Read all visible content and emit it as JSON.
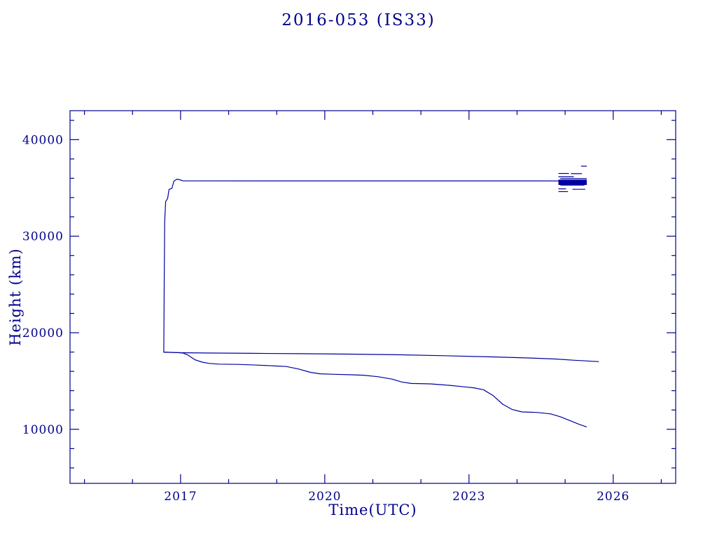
{
  "colors": {
    "ink": "#00008B",
    "line": "#0000A0",
    "background": "#FFFFFF"
  },
  "chart_data": {
    "type": "line",
    "title": "2016-053 (IS33)",
    "xlabel": "Time(UTC)",
    "ylabel": "Height (km)",
    "xlim": [
      2014.7,
      2027.3
    ],
    "ylim": [
      4400,
      43000
    ],
    "xticks": [
      2017,
      2020,
      2023,
      2026
    ],
    "yticks": [
      10000,
      20000,
      30000,
      40000
    ],
    "xtick_minor_step": 1,
    "ytick_minor_step": 2000,
    "grid": false,
    "legend": "none",
    "series": [
      {
        "name": "upper-line-apogee",
        "points": [
          [
            2016.65,
            17950
          ],
          [
            2016.66,
            26000
          ],
          [
            2016.67,
            31500
          ],
          [
            2016.69,
            33600
          ],
          [
            2016.73,
            33900
          ],
          [
            2016.76,
            34850
          ],
          [
            2016.82,
            34950
          ],
          [
            2016.86,
            35700
          ],
          [
            2016.92,
            35900
          ],
          [
            2016.98,
            35850
          ],
          [
            2017.05,
            35730
          ],
          [
            2025.42,
            35720
          ]
        ]
      },
      {
        "name": "middle-line",
        "points": [
          [
            2016.65,
            17980
          ],
          [
            2017.0,
            17930
          ],
          [
            2017.5,
            17900
          ],
          [
            2018.5,
            17870
          ],
          [
            2019.5,
            17830
          ],
          [
            2020.5,
            17790
          ],
          [
            2021.5,
            17720
          ],
          [
            2022.5,
            17620
          ],
          [
            2023.5,
            17500
          ],
          [
            2024.3,
            17380
          ],
          [
            2024.8,
            17280
          ],
          [
            2025.2,
            17150
          ],
          [
            2025.7,
            17010
          ]
        ]
      },
      {
        "name": "lower-line-perigee",
        "points": [
          [
            2016.65,
            18000
          ],
          [
            2016.9,
            17950
          ],
          [
            2017.05,
            17900
          ],
          [
            2017.15,
            17700
          ],
          [
            2017.3,
            17200
          ],
          [
            2017.45,
            16950
          ],
          [
            2017.6,
            16820
          ],
          [
            2017.8,
            16750
          ],
          [
            2018.2,
            16720
          ],
          [
            2018.6,
            16650
          ],
          [
            2019.0,
            16550
          ],
          [
            2019.2,
            16500
          ],
          [
            2019.45,
            16250
          ],
          [
            2019.7,
            15900
          ],
          [
            2019.9,
            15750
          ],
          [
            2020.2,
            15700
          ],
          [
            2020.5,
            15650
          ],
          [
            2020.8,
            15600
          ],
          [
            2021.1,
            15450
          ],
          [
            2021.4,
            15200
          ],
          [
            2021.6,
            14900
          ],
          [
            2021.8,
            14750
          ],
          [
            2022.2,
            14700
          ],
          [
            2022.6,
            14550
          ],
          [
            2022.9,
            14400
          ],
          [
            2023.1,
            14300
          ],
          [
            2023.3,
            14100
          ],
          [
            2023.5,
            13500
          ],
          [
            2023.7,
            12600
          ],
          [
            2023.9,
            12050
          ],
          [
            2024.1,
            11800
          ],
          [
            2024.4,
            11750
          ],
          [
            2024.7,
            11600
          ],
          [
            2024.9,
            11300
          ],
          [
            2025.1,
            10900
          ],
          [
            2025.3,
            10500
          ],
          [
            2025.45,
            10250
          ]
        ]
      }
    ],
    "debris_segments": [
      [
        2025.33,
        2025.45,
        37250,
        1.2
      ],
      [
        2024.86,
        2025.08,
        36500,
        1.2
      ],
      [
        2025.12,
        2025.35,
        36480,
        1.2
      ],
      [
        2024.86,
        2025.18,
        36150,
        1.2
      ],
      [
        2024.9,
        2025.45,
        35960,
        1.2
      ],
      [
        2024.86,
        2025.45,
        35800,
        1.5
      ],
      [
        2024.86,
        2025.45,
        35560,
        7
      ],
      [
        2024.9,
        2025.4,
        35300,
        1.5
      ],
      [
        2024.86,
        2025.02,
        34900,
        1.2
      ],
      [
        2025.15,
        2025.42,
        34860,
        1.2
      ],
      [
        2024.86,
        2025.06,
        34620,
        1.2
      ]
    ]
  }
}
